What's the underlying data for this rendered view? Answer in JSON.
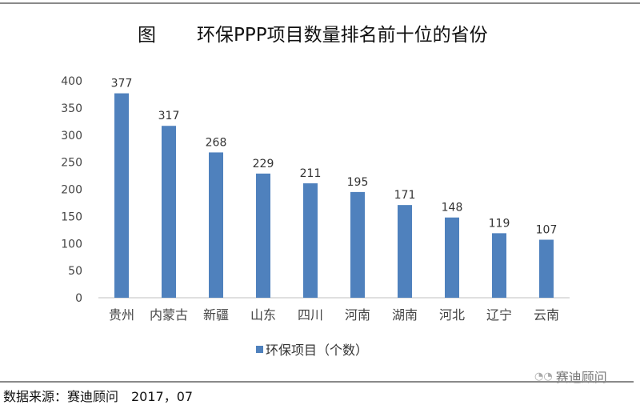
{
  "title_prefix": "图",
  "title": "环保PPP项目数量排名前十位的省份",
  "chart_data": {
    "type": "bar",
    "title": "环保PPP项目数量排名前十位的省份",
    "categories": [
      "贵州",
      "内蒙古",
      "新疆",
      "山东",
      "四川",
      "河南",
      "湖南",
      "河北",
      "辽宁",
      "云南"
    ],
    "series": [
      {
        "name": "环保项目（个数）",
        "values": [
          377,
          317,
          268,
          229,
          211,
          195,
          171,
          148,
          119,
          107
        ],
        "color": "#4f81bd"
      }
    ],
    "ylim": [
      0,
      400
    ],
    "yticks": [
      0,
      50,
      100,
      150,
      200,
      250,
      300,
      350,
      400
    ],
    "grid": false,
    "legend": "bottom",
    "data_labels": true
  },
  "source": "数据来源：赛迪顾问　2017，07",
  "watermark": "赛迪顾问",
  "watermark_icon": "wechat-icon"
}
